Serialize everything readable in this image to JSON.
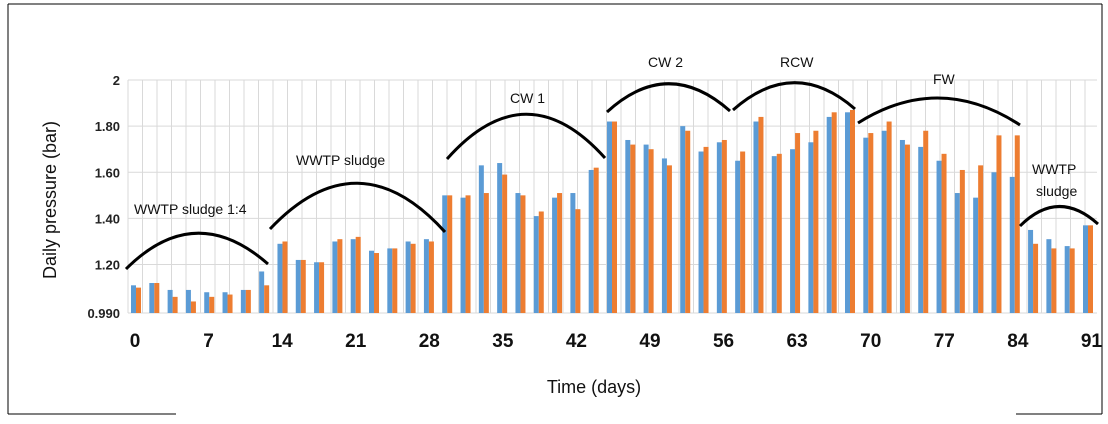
{
  "chart_data": {
    "type": "bar",
    "title": "",
    "xlabel": "Time (days)",
    "ylabel": "Daily pressure (bar)",
    "ylim": [
      0.99,
      2.0
    ],
    "y_ticks": [
      "0.990",
      "1.20",
      "1.40",
      "1.60",
      "1.80",
      "2"
    ],
    "x_ticks": [
      "0",
      "7",
      "14",
      "21",
      "28",
      "35",
      "42",
      "49",
      "56",
      "63",
      "70",
      "77",
      "84",
      "91"
    ],
    "grid": true,
    "legend": "none",
    "colors": {
      "series_a": "#5b9bd5",
      "series_b": "#ed7d31"
    },
    "series": [
      {
        "values": [
          1.11,
          1.12,
          1.09,
          1.09,
          1.08,
          1.08,
          1.09,
          1.17,
          1.29,
          1.22,
          1.21,
          1.3,
          1.31,
          1.26,
          1.27,
          1.3,
          1.31,
          1.5,
          1.49,
          1.63,
          1.64,
          1.51,
          1.41,
          1.49,
          1.51,
          1.61,
          1.82,
          1.74,
          1.72,
          1.66,
          1.8,
          1.69,
          1.73,
          1.65,
          1.82,
          1.67,
          1.7,
          1.73,
          1.84,
          1.86,
          1.75,
          1.78,
          1.74,
          1.71,
          1.65,
          1.51,
          1.49,
          1.6,
          1.58,
          1.35,
          1.31,
          1.28,
          1.37
        ]
      },
      {
        "values": [
          1.1,
          1.12,
          1.06,
          1.04,
          1.06,
          1.07,
          1.09,
          1.11,
          1.3,
          1.22,
          1.21,
          1.31,
          1.32,
          1.25,
          1.27,
          1.29,
          1.3,
          1.5,
          1.5,
          1.51,
          1.59,
          1.5,
          1.43,
          1.51,
          1.44,
          1.62,
          1.82,
          1.72,
          1.7,
          1.63,
          1.78,
          1.71,
          1.74,
          1.69,
          1.84,
          1.68,
          1.77,
          1.78,
          1.86,
          1.87,
          1.77,
          1.82,
          1.72,
          1.78,
          1.68,
          1.61,
          1.63,
          1.76,
          1.76,
          1.29,
          1.27,
          1.27,
          1.37
        ]
      }
    ],
    "phase_labels": [
      "WWTP sludge 1:4",
      "WWTP sludge",
      "CW 1",
      "CW 2",
      "RCW",
      "FW",
      "WWTP",
      "sludge"
    ]
  }
}
